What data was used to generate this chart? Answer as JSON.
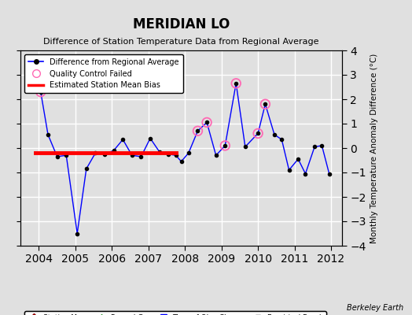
{
  "title": "MERIDIAN LO",
  "subtitle": "Difference of Station Temperature Data from Regional Average",
  "ylabel_right": "Monthly Temperature Anomaly Difference (°C)",
  "xlim": [
    2003.5,
    2012.3
  ],
  "ylim": [
    -4,
    4
  ],
  "yticks": [
    -4,
    -3,
    -2,
    -1,
    0,
    1,
    2,
    3,
    4
  ],
  "xticks": [
    2004,
    2005,
    2006,
    2007,
    2008,
    2009,
    2010,
    2011,
    2012
  ],
  "background_color": "#e0e0e0",
  "plot_bg_color": "#e0e0e0",
  "grid_color": "white",
  "bias_line_y": -0.2,
  "bias_line_x_start": 2003.9,
  "bias_line_x_end": 2007.75,
  "main_data_x": [
    2004.05,
    2004.25,
    2004.5,
    2004.75,
    2005.05,
    2005.3,
    2005.55,
    2005.8,
    2006.05,
    2006.3,
    2006.55,
    2006.8,
    2007.05,
    2007.3,
    2007.55,
    2007.75,
    2007.9,
    2008.1,
    2008.35,
    2008.6,
    2008.85,
    2009.1,
    2009.4,
    2009.65,
    2010.0,
    2010.2,
    2010.45,
    2010.65,
    2010.85,
    2011.1,
    2011.3,
    2011.55,
    2011.75,
    2011.95
  ],
  "main_data_y": [
    2.3,
    0.55,
    -0.35,
    -0.3,
    -3.5,
    -0.85,
    -0.2,
    -0.25,
    -0.1,
    0.35,
    -0.3,
    -0.35,
    0.4,
    -0.15,
    -0.25,
    -0.3,
    -0.55,
    -0.2,
    0.7,
    1.05,
    -0.3,
    0.1,
    2.65,
    0.05,
    0.6,
    1.8,
    0.55,
    0.35,
    -0.9,
    -0.45,
    -1.05,
    0.05,
    0.1,
    -1.05
  ],
  "qc_failed_x": [
    2004.05,
    2008.35,
    2008.6,
    2009.1,
    2009.4,
    2010.0,
    2010.2
  ],
  "qc_failed_y": [
    2.3,
    0.7,
    1.05,
    0.1,
    2.65,
    0.6,
    1.8
  ],
  "line_color": "blue",
  "marker_color": "black",
  "qc_edgecolor": "#ff69b4",
  "bias_color": "red",
  "watermark": "Berkeley Earth"
}
